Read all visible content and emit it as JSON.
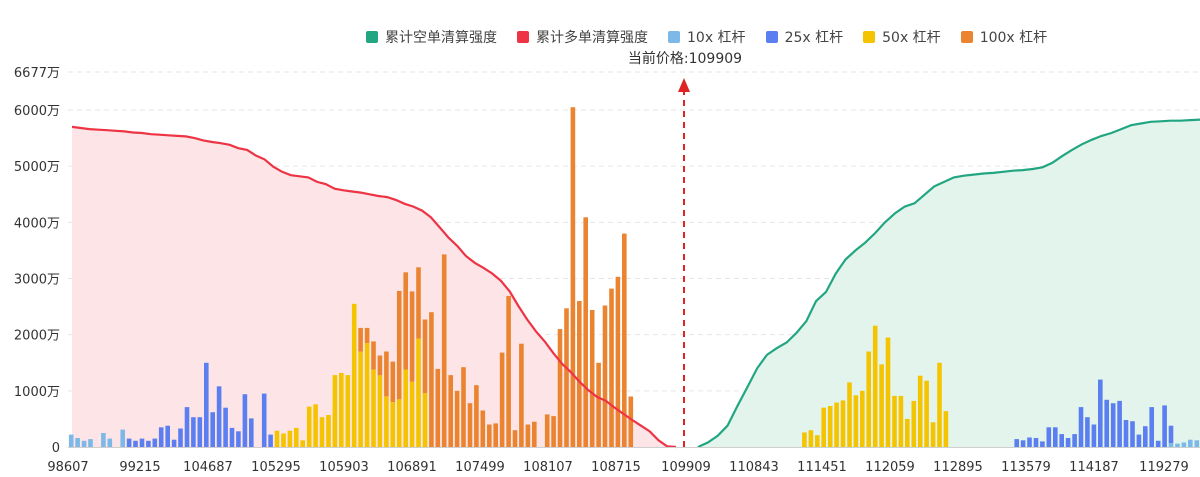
{
  "legend": {
    "items": [
      {
        "label": "累计空单清算强度",
        "color": "#22a681"
      },
      {
        "label": "累计多单清算强度",
        "color": "#ee3344"
      },
      {
        "label": "10x 杠杆",
        "color": "#7cb8e8"
      },
      {
        "label": "25x 杠杆",
        "color": "#5b7ff0"
      },
      {
        "label": "50x 杠杆",
        "color": "#f5c400"
      },
      {
        "label": "100x 杠杆",
        "color": "#ea8430"
      }
    ]
  },
  "current_price": {
    "label": "当前价格:109909",
    "value": 109909
  },
  "chart_data": {
    "type": "bar",
    "title": "",
    "ylim": [
      0,
      6677
    ],
    "y_ticks": [
      0,
      1000,
      2000,
      3000,
      4000,
      5000,
      6000,
      6677
    ],
    "y_tick_labels": [
      "0",
      "1000万",
      "2000万",
      "3000万",
      "4000万",
      "5000万",
      "6000万",
      "6677万"
    ],
    "x_tick_labels": [
      "98607",
      "99215",
      "104687",
      "105295",
      "105903",
      "106891",
      "107499",
      "108107",
      "108715",
      "109909",
      "110843",
      "111451",
      "112059",
      "112895",
      "113579",
      "114187",
      "119279"
    ],
    "current_price_x_label": "109909",
    "series": [
      {
        "name": "10x 杠杆",
        "color": "#7cb8e8",
        "values": [
          220,
          160,
          110,
          140,
          0,
          250,
          150,
          0,
          310,
          0,
          0,
          0,
          0,
          0,
          0,
          0,
          0,
          0,
          0,
          0,
          0,
          0,
          0,
          0,
          0,
          0,
          0,
          0,
          0,
          0,
          0,
          0,
          0,
          0,
          0,
          0,
          0,
          0,
          0,
          0,
          0,
          0,
          0,
          0,
          0,
          0,
          0,
          0,
          0,
          0,
          0,
          0,
          0,
          0,
          0,
          0,
          0,
          0,
          0,
          0,
          0,
          0,
          0,
          0,
          0,
          0,
          0,
          0,
          0,
          0,
          0,
          0,
          0,
          0,
          0,
          0,
          0,
          0,
          0,
          0,
          0,
          0,
          0,
          0,
          0,
          0,
          0,
          0,
          0,
          0,
          0,
          0,
          0,
          0,
          0,
          0,
          0,
          0,
          0,
          0,
          0,
          0,
          0,
          0,
          0,
          0,
          0,
          0,
          0,
          0,
          0,
          0,
          0,
          0,
          0,
          0,
          0,
          0,
          0,
          0,
          0,
          0,
          0,
          0,
          0,
          0,
          0,
          0,
          0,
          0,
          0,
          0,
          0,
          0,
          0,
          0,
          0,
          0,
          0,
          0,
          0,
          0,
          0,
          0,
          0,
          0,
          0,
          0,
          0,
          0,
          0,
          0,
          0,
          0,
          0,
          0,
          0,
          0,
          0,
          0,
          0,
          0,
          0,
          0,
          0,
          0,
          0,
          0,
          0,
          0,
          0,
          70,
          60,
          80,
          130,
          120
        ]
      },
      {
        "name": "25x 杠杆",
        "color": "#5b7ff0",
        "values": [
          0,
          0,
          0,
          0,
          0,
          0,
          0,
          0,
          0,
          150,
          110,
          150,
          110,
          150,
          350,
          380,
          130,
          330,
          710,
          530,
          530,
          1500,
          620,
          1080,
          700,
          340,
          280,
          940,
          510,
          0,
          950,
          220,
          0,
          0,
          0,
          0,
          0,
          0,
          0,
          0,
          0,
          0,
          0,
          0,
          0,
          0,
          0,
          0,
          0,
          0,
          0,
          0,
          0,
          0,
          0,
          0,
          0,
          0,
          0,
          0,
          0,
          0,
          0,
          0,
          0,
          0,
          0,
          0,
          0,
          0,
          0,
          0,
          0,
          0,
          0,
          0,
          0,
          0,
          0,
          0,
          0,
          0,
          0,
          0,
          0,
          0,
          0,
          0,
          0,
          0,
          0,
          0,
          0,
          0,
          0,
          0,
          0,
          0,
          0,
          0,
          0,
          0,
          0,
          0,
          0,
          0,
          0,
          0,
          0,
          0,
          0,
          0,
          0,
          0,
          0,
          0,
          0,
          0,
          0,
          0,
          0,
          0,
          0,
          0,
          0,
          0,
          0,
          0,
          0,
          0,
          0,
          0,
          0,
          0,
          0,
          0,
          0,
          0,
          0,
          0,
          0,
          0,
          0,
          0,
          0,
          0,
          0,
          140,
          120,
          170,
          160,
          100,
          350,
          350,
          230,
          160,
          230,
          710,
          530,
          400,
          1200,
          840,
          780,
          820,
          480,
          460,
          220,
          370,
          710,
          110,
          740,
          310,
          0,
          0,
          0,
          0,
          0
        ]
      },
      {
        "name": "50x 杠杆",
        "color": "#f5c400",
        "values": [
          0,
          0,
          0,
          0,
          0,
          0,
          0,
          0,
          0,
          0,
          0,
          0,
          0,
          0,
          0,
          0,
          0,
          0,
          0,
          0,
          0,
          0,
          0,
          0,
          0,
          0,
          0,
          0,
          0,
          0,
          0,
          0,
          290,
          240,
          290,
          340,
          120,
          720,
          760,
          530,
          570,
          1280,
          1320,
          1280,
          2550,
          1700,
          1850,
          1380,
          1280,
          900,
          800,
          850,
          1380,
          1160,
          1930,
          960,
          0,
          0,
          0,
          0,
          0,
          0,
          0,
          0,
          0,
          0,
          0,
          0,
          0,
          0,
          0,
          0,
          0,
          0,
          0,
          0,
          0,
          0,
          0,
          0,
          0,
          0,
          0,
          0,
          0,
          0,
          0,
          0,
          0,
          0,
          0,
          0,
          0,
          0,
          0,
          0,
          0,
          0,
          0,
          0,
          0,
          0,
          0,
          0,
          0,
          0,
          0,
          0,
          0,
          0,
          0,
          0,
          0,
          0,
          260,
          300,
          210,
          700,
          730,
          790,
          830,
          1150,
          920,
          1000,
          1700,
          2160,
          1470,
          1950,
          910,
          910,
          500,
          820,
          1270,
          1180,
          440,
          1500,
          640,
          0,
          0,
          0,
          0,
          0,
          0,
          0,
          0,
          0,
          0,
          0,
          0,
          0,
          0,
          0,
          0,
          0,
          0,
          0,
          0,
          0,
          0,
          0,
          0,
          0,
          0,
          0,
          0,
          0,
          0
        ]
      },
      {
        "name": "100x 杠杆",
        "color": "#ea8430",
        "values": [
          0,
          0,
          0,
          0,
          0,
          0,
          0,
          0,
          0,
          0,
          0,
          0,
          0,
          0,
          0,
          0,
          0,
          0,
          0,
          0,
          0,
          0,
          0,
          0,
          0,
          0,
          0,
          0,
          0,
          0,
          0,
          0,
          0,
          0,
          0,
          0,
          0,
          0,
          0,
          0,
          0,
          0,
          0,
          0,
          0,
          420,
          270,
          500,
          350,
          800,
          720,
          1930,
          1730,
          1610,
          1270,
          1310,
          2400,
          1390,
          3430,
          1280,
          1000,
          1420,
          780,
          1100,
          650,
          400,
          420,
          1680,
          2690,
          300,
          1840,
          400,
          450,
          0,
          580,
          550,
          2100,
          2470,
          6050,
          2600,
          4090,
          2440,
          1500,
          2520,
          2820,
          3030,
          3800,
          900,
          0,
          0,
          0,
          0,
          0,
          0,
          0,
          0,
          0,
          0,
          0,
          0,
          0,
          0,
          0,
          0,
          0,
          0,
          0,
          0,
          0,
          0,
          0,
          0,
          0,
          0,
          0,
          0,
          0,
          0,
          0,
          0,
          0,
          0,
          0,
          0,
          0,
          0,
          0,
          0,
          0,
          0,
          0,
          0,
          0,
          0,
          0,
          0,
          0,
          0,
          0,
          0,
          0,
          0,
          0,
          0,
          0,
          0,
          0,
          0,
          0,
          0,
          0,
          0,
          0,
          0,
          0,
          0,
          0,
          0,
          0,
          0,
          0,
          0,
          0,
          0,
          0,
          0,
          0,
          0,
          0,
          0,
          0,
          0,
          0,
          0,
          0,
          0,
          0,
          0,
          0,
          0,
          0
        ]
      }
    ],
    "cumulative_long": {
      "name": "累计多单清算强度",
      "color": "#ee3344",
      "price_range": [
        98607,
        109909
      ],
      "values": [
        5700,
        5680,
        5660,
        5650,
        5640,
        5630,
        5620,
        5600,
        5590,
        5570,
        5560,
        5550,
        5540,
        5530,
        5500,
        5460,
        5430,
        5410,
        5380,
        5320,
        5290,
        5190,
        5120,
        4990,
        4900,
        4840,
        4820,
        4800,
        4720,
        4680,
        4600,
        4570,
        4550,
        4530,
        4500,
        4470,
        4450,
        4400,
        4330,
        4280,
        4210,
        4090,
        3910,
        3730,
        3580,
        3400,
        3280,
        3190,
        3090,
        2960,
        2770,
        2510,
        2270,
        2060,
        1880,
        1670,
        1480,
        1330,
        1160,
        1010,
        890,
        820,
        700,
        590,
        480,
        380,
        280,
        120,
        10,
        0
      ]
    },
    "cumulative_short": {
      "name": "累计空单清算强度",
      "color": "#22a681",
      "price_range": [
        109909,
        119279
      ],
      "values": [
        0,
        80,
        200,
        380,
        730,
        1060,
        1400,
        1640,
        1760,
        1860,
        2030,
        2240,
        2600,
        2760,
        3090,
        3340,
        3500,
        3640,
        3810,
        4000,
        4160,
        4280,
        4340,
        4490,
        4640,
        4720,
        4800,
        4830,
        4850,
        4870,
        4880,
        4900,
        4920,
        4930,
        4950,
        4980,
        5060,
        5180,
        5290,
        5390,
        5470,
        5540,
        5590,
        5660,
        5730,
        5760,
        5790,
        5800,
        5810,
        5810,
        5820,
        5830
      ]
    }
  }
}
